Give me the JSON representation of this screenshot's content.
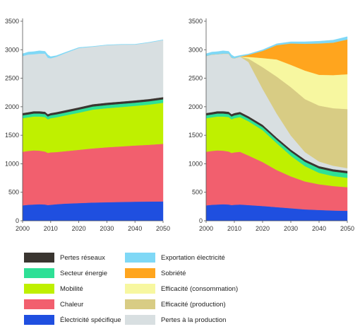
{
  "chart_data": [
    {
      "type": "area",
      "stacked": true,
      "xlabel": "",
      "ylabel": "",
      "x": [
        2000,
        2002,
        2004,
        2006,
        2008,
        2009,
        2010,
        2012,
        2015,
        2020,
        2025,
        2030,
        2035,
        2040,
        2045,
        2050
      ],
      "ylim": [
        0,
        3500
      ],
      "xlim": [
        2000,
        2050
      ],
      "xticks": [
        "2000",
        "2010",
        "2020",
        "2030",
        "2040",
        "2050"
      ],
      "yticks": [
        "0",
        "500",
        "1000",
        "1500",
        "2000",
        "2500",
        "3000",
        "3500"
      ],
      "grid": false,
      "series": [
        {
          "name": "Électricité spécifique",
          "color": "#1f4fe0",
          "values": [
            270,
            280,
            285,
            290,
            285,
            275,
            280,
            290,
            300,
            310,
            320,
            325,
            330,
            335,
            338,
            340
          ]
        },
        {
          "name": "Chaleur",
          "color": "#f25f6e",
          "values": [
            940,
            945,
            950,
            940,
            930,
            915,
            920,
            915,
            920,
            935,
            950,
            965,
            975,
            985,
            995,
            1010
          ]
        },
        {
          "name": "Mobilité",
          "color": "#bff000",
          "values": [
            590,
            590,
            595,
            600,
            605,
            590,
            600,
            610,
            625,
            650,
            680,
            685,
            690,
            695,
            705,
            720
          ]
        },
        {
          "name": "Secteur énergie",
          "color": "#2ee096",
          "values": [
            50,
            50,
            52,
            52,
            52,
            50,
            50,
            52,
            52,
            55,
            55,
            56,
            56,
            57,
            58,
            60
          ]
        },
        {
          "name": "Pertes réseaux",
          "color": "#3a3530",
          "values": [
            40,
            40,
            40,
            40,
            40,
            40,
            40,
            40,
            40,
            40,
            40,
            40,
            40,
            40,
            40,
            40
          ]
        },
        {
          "name": "Pertes à la production",
          "color": "#d8dfe1",
          "values": [
            1000,
            1010,
            1000,
            1010,
            1020,
            990,
            960,
            970,
            1000,
            1040,
            1010,
            1010,
            1000,
            980,
            990,
            1000
          ]
        },
        {
          "name": "Exportation électricité",
          "color": "#7fd8f6",
          "values": [
            40,
            45,
            45,
            50,
            40,
            50,
            30,
            20,
            15,
            10,
            5,
            5,
            5,
            5,
            5,
            5
          ]
        }
      ]
    },
    {
      "type": "area",
      "stacked": true,
      "xlabel": "",
      "ylabel": "",
      "x": [
        2000,
        2002,
        2004,
        2006,
        2008,
        2009,
        2010,
        2012,
        2015,
        2020,
        2025,
        2030,
        2035,
        2040,
        2045,
        2050
      ],
      "ylim": [
        0,
        3500
      ],
      "xlim": [
        2000,
        2050
      ],
      "xticks": [
        "2000",
        "2010",
        "2020",
        "2030",
        "2040",
        "2050"
      ],
      "yticks": [
        "0",
        "500",
        "1000",
        "1500",
        "2000",
        "2500",
        "3000",
        "3500"
      ],
      "grid": false,
      "series": [
        {
          "name": "Électricité spécifique",
          "color": "#1f4fe0",
          "values": [
            270,
            280,
            285,
            290,
            285,
            275,
            280,
            285,
            275,
            260,
            240,
            220,
            200,
            190,
            180,
            175
          ]
        },
        {
          "name": "Chaleur",
          "color": "#f25f6e",
          "values": [
            940,
            945,
            950,
            940,
            930,
            915,
            920,
            925,
            870,
            770,
            650,
            560,
            490,
            450,
            430,
            415
          ]
        },
        {
          "name": "Mobilité",
          "color": "#bff000",
          "values": [
            590,
            590,
            595,
            600,
            605,
            590,
            600,
            610,
            600,
            560,
            470,
            360,
            270,
            200,
            175,
            165
          ]
        },
        {
          "name": "Secteur énergie",
          "color": "#2ee096",
          "values": [
            50,
            50,
            52,
            52,
            52,
            50,
            50,
            50,
            50,
            55,
            60,
            70,
            75,
            80,
            80,
            80
          ]
        },
        {
          "name": "Pertes réseaux",
          "color": "#3a3530",
          "values": [
            40,
            40,
            40,
            40,
            40,
            40,
            40,
            40,
            40,
            40,
            40,
            40,
            40,
            40,
            40,
            40
          ]
        },
        {
          "name": "Pertes à la production",
          "color": "#d8dfe1",
          "values": [
            1000,
            1010,
            1000,
            1010,
            1020,
            990,
            960,
            970,
            950,
            630,
            420,
            245,
            130,
            80,
            60,
            50
          ]
        },
        {
          "name": "Efficacité (production)",
          "color": "#d8cc84",
          "values": [
            0,
            0,
            0,
            0,
            0,
            0,
            0,
            0,
            60,
            380,
            650,
            850,
            930,
            980,
            1010,
            1035
          ]
        },
        {
          "name": "Efficacité (consommation)",
          "color": "#f7f7a0",
          "values": [
            0,
            0,
            0,
            0,
            0,
            0,
            0,
            0,
            30,
            160,
            300,
            390,
            500,
            540,
            580,
            610
          ]
        },
        {
          "name": "Sobriété",
          "color": "#ffa51e",
          "values": [
            0,
            0,
            0,
            0,
            0,
            0,
            0,
            0,
            35,
            125,
            250,
            375,
            470,
            550,
            570,
            610
          ]
        },
        {
          "name": "Exportation électricité",
          "color": "#7fd8f6",
          "values": [
            40,
            45,
            45,
            50,
            40,
            50,
            30,
            20,
            15,
            20,
            25,
            30,
            35,
            40,
            45,
            50
          ]
        }
      ]
    }
  ],
  "legend": {
    "left": [
      {
        "label": "Pertes réseaux",
        "color": "#3a3530"
      },
      {
        "label": "Secteur énergie",
        "color": "#2ee096"
      },
      {
        "label": "Mobilité",
        "color": "#bff000"
      },
      {
        "label": "Chaleur",
        "color": "#f25f6e"
      },
      {
        "label": "Électricité spécifique",
        "color": "#1f4fe0"
      }
    ],
    "right": [
      {
        "label": "Exportation électricité",
        "color": "#7fd8f6"
      },
      {
        "label": "Sobriété",
        "color": "#ffa51e"
      },
      {
        "label": "Efficacité (consommation)",
        "color": "#f7f7a0"
      },
      {
        "label": "Efficacité (production)",
        "color": "#d8cc84"
      },
      {
        "label": "Pertes à la production",
        "color": "#d8dfe1"
      }
    ]
  }
}
